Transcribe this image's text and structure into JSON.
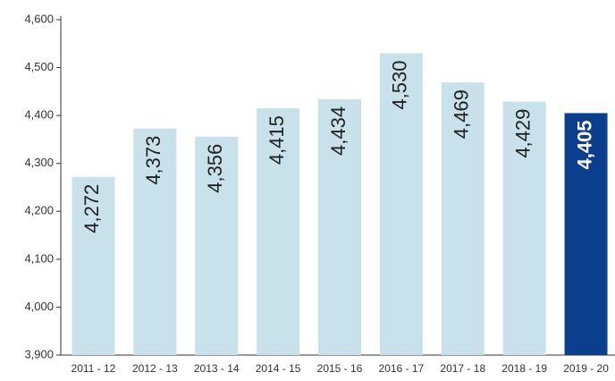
{
  "chart_data": {
    "type": "bar",
    "categories": [
      "2011 - 12",
      "2012 - 13",
      "2013 - 14",
      "2014 - 15",
      "2015 - 16",
      "2016 - 17",
      "2017 - 18",
      "2018 - 19",
      "2019 - 20"
    ],
    "values": [
      4272,
      4373,
      4356,
      4415,
      4434,
      4530,
      4469,
      4429,
      4405
    ],
    "value_labels": [
      "4,272",
      "4,373",
      "4,356",
      "4,415",
      "4,434",
      "4,530",
      "4,469",
      "4,429",
      "4,405"
    ],
    "colors": [
      "#c9e1ea",
      "#c9e1ea",
      "#c9e1ea",
      "#c9e1ea",
      "#c9e1ea",
      "#c9e1ea",
      "#c9e1ea",
      "#c9e1ea",
      "#0b3f8e"
    ],
    "ylim": [
      3900,
      4600
    ],
    "yticks": [
      {
        "value": 3900,
        "label": "3,900"
      },
      {
        "value": 4000,
        "label": "4,000"
      },
      {
        "value": 4100,
        "label": "4,100"
      },
      {
        "value": 4200,
        "label": "4,200"
      },
      {
        "value": 4300,
        "label": "4,300"
      },
      {
        "value": 4400,
        "label": "4,400"
      },
      {
        "value": 4500,
        "label": "4,500"
      },
      {
        "value": 4600,
        "label": "4,600"
      }
    ],
    "grid": false
  }
}
